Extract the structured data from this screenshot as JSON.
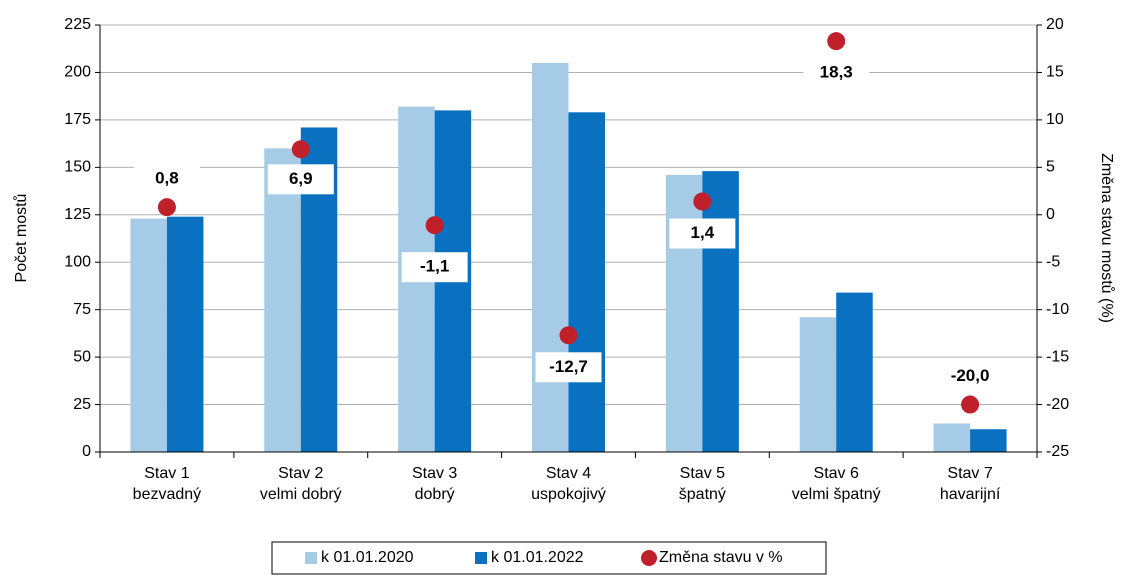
{
  "chart_data": {
    "type": "bar",
    "categories": [
      [
        "Stav 1",
        "bezvadný"
      ],
      [
        "Stav 2",
        "velmi dobrý"
      ],
      [
        "Stav 3",
        "dobrý"
      ],
      [
        "Stav 4",
        "uspokojivý"
      ],
      [
        "Stav 5",
        "špatný"
      ],
      [
        "Stav 6",
        "velmi špatný"
      ],
      [
        "Stav 7",
        "havarijní"
      ]
    ],
    "ylabel": "Počet mostů",
    "y2label": "Změna stavu mostů (%)",
    "ylim": [
      0,
      225
    ],
    "yticks": [
      0,
      25,
      50,
      75,
      100,
      125,
      150,
      175,
      200,
      225
    ],
    "y2lim": [
      -25,
      20
    ],
    "y2ticks": [
      -25,
      -20,
      -15,
      -10,
      -5,
      0,
      5,
      10,
      15,
      20
    ],
    "grid": true,
    "legend": "bottom",
    "series": [
      {
        "name": "k 01.01.2020",
        "color": "#a6cbe6",
        "values": [
          123,
          160,
          182,
          205,
          146,
          71,
          15
        ]
      },
      {
        "name": "k 01.01.2022",
        "color": "#0a70c0",
        "values": [
          124,
          171,
          180,
          179,
          148,
          84,
          12
        ]
      },
      {
        "name": "Změna stavu v %",
        "color": "#c0202a",
        "type": "scatter",
        "axis": "y2",
        "values": [
          0.8,
          6.9,
          -1.1,
          -12.7,
          1.4,
          18.3,
          -20.0
        ],
        "value_labels": [
          "0,8",
          "6,9",
          "-1,1",
          "-12,7",
          "1,4",
          "18,3",
          "-20,0"
        ]
      }
    ]
  }
}
